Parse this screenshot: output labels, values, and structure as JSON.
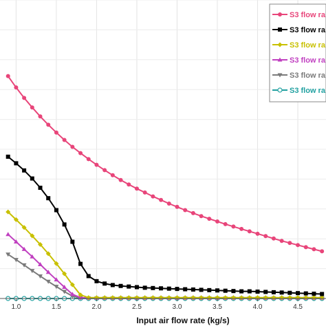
{
  "chart_data": {
    "type": "line",
    "title": "",
    "xlabel": "Input air flow rate (kg/s)",
    "ylabel": "",
    "xlim": [
      0.8,
      4.85
    ],
    "ylim": [
      0.0,
      1.0
    ],
    "x_ticks": [
      "1.0",
      "1.5",
      "2.0",
      "2.5",
      "3.0",
      "3.5",
      "4.0",
      "4.5"
    ],
    "grid": true,
    "legend_position": "top-right",
    "x": [
      0.9,
      1.0,
      1.1,
      1.2,
      1.3,
      1.4,
      1.5,
      1.6,
      1.7,
      1.8,
      1.9,
      2.0,
      2.1,
      2.2,
      2.3,
      2.4,
      2.5,
      2.6,
      2.7,
      2.8,
      2.9,
      3.0,
      3.1,
      3.2,
      3.3,
      3.4,
      3.5,
      3.6,
      3.7,
      3.8,
      3.9,
      4.0,
      4.1,
      4.2,
      4.3,
      4.4,
      4.5,
      4.6,
      4.7,
      4.8
    ],
    "series": [
      {
        "name": "S3 flow ra",
        "color": "#e8457a",
        "marker": "circle",
        "values": [
          0.745,
          0.707,
          0.672,
          0.64,
          0.61,
          0.582,
          0.556,
          0.531,
          0.508,
          0.487,
          0.467,
          0.448,
          0.43,
          0.413,
          0.397,
          0.382,
          0.368,
          0.355,
          0.342,
          0.33,
          0.318,
          0.307,
          0.296,
          0.286,
          0.276,
          0.267,
          0.258,
          0.249,
          0.241,
          0.233,
          0.225,
          0.217,
          0.209,
          0.201,
          0.193,
          0.186,
          0.179,
          0.172,
          0.165,
          0.158
        ]
      },
      {
        "name": "S3 flow ra",
        "color": "#000000",
        "marker": "square",
        "values": [
          0.475,
          0.453,
          0.429,
          0.402,
          0.371,
          0.336,
          0.296,
          0.248,
          0.19,
          0.116,
          0.075,
          0.058,
          0.05,
          0.045,
          0.042,
          0.04,
          0.038,
          0.036,
          0.035,
          0.034,
          0.033,
          0.032,
          0.031,
          0.03,
          0.029,
          0.028,
          0.027,
          0.026,
          0.025,
          0.024,
          0.024,
          0.023,
          0.022,
          0.021,
          0.02,
          0.019,
          0.018,
          0.017,
          0.016,
          0.015
        ]
      },
      {
        "name": "S3 flow ra",
        "color": "#c8c000",
        "marker": "diamond",
        "values": [
          0.29,
          0.264,
          0.238,
          0.21,
          0.181,
          0.15,
          0.117,
          0.083,
          0.046,
          0.012,
          0.003,
          0.003,
          0.003,
          0.003,
          0.003,
          0.003,
          0.003,
          0.003,
          0.003,
          0.003,
          0.003,
          0.003,
          0.003,
          0.003,
          0.003,
          0.003,
          0.003,
          0.003,
          0.003,
          0.003,
          0.003,
          0.003,
          0.003,
          0.003,
          0.003,
          0.003,
          0.003,
          0.003,
          0.003,
          0.003
        ]
      },
      {
        "name": "S3 flow ra",
        "color": "#c040c0",
        "marker": "triangle",
        "values": [
          0.215,
          0.19,
          0.165,
          0.14,
          0.114,
          0.088,
          0.063,
          0.038,
          0.014,
          0.003,
          0.002,
          0.002,
          0.002,
          0.002,
          0.002,
          0.002,
          0.002,
          0.002,
          0.002,
          0.002,
          0.002,
          0.002,
          0.002,
          0.002,
          0.002,
          0.002,
          0.002,
          0.002,
          0.002,
          0.002,
          0.002,
          0.002,
          0.002,
          0.002,
          0.002,
          0.002,
          0.002,
          0.002,
          0.002,
          0.002
        ]
      },
      {
        "name": "S3 flow ra",
        "color": "#7a7a7a",
        "marker": "triangle-down",
        "values": [
          0.148,
          0.13,
          0.112,
          0.093,
          0.075,
          0.057,
          0.04,
          0.023,
          0.008,
          0.002,
          0.001,
          0.001,
          0.001,
          0.001,
          0.001,
          0.001,
          0.001,
          0.001,
          0.001,
          0.001,
          0.001,
          0.001,
          0.001,
          0.001,
          0.001,
          0.001,
          0.001,
          0.001,
          0.001,
          0.001,
          0.001,
          0.001,
          0.001,
          0.001,
          0.001,
          0.001,
          0.001,
          0.001,
          0.001,
          0.001
        ]
      },
      {
        "name": "S3 flow ra",
        "color": "#20a0a0",
        "marker": "circle-open",
        "values": [
          0.0,
          0.0,
          0.0,
          0.0,
          0.0,
          0.0,
          0.0,
          0.0,
          0.0,
          0.0,
          0.0,
          0.0,
          0.0,
          0.0,
          0.0,
          0.0,
          0.0,
          0.0,
          0.0,
          0.0,
          0.0,
          0.0,
          0.0,
          0.0,
          0.0,
          0.0,
          0.0,
          0.0,
          0.0,
          0.0,
          0.0,
          0.0,
          0.0,
          0.0,
          0.0,
          0.0,
          0.0,
          0.0,
          0.0,
          0.0
        ]
      }
    ]
  }
}
